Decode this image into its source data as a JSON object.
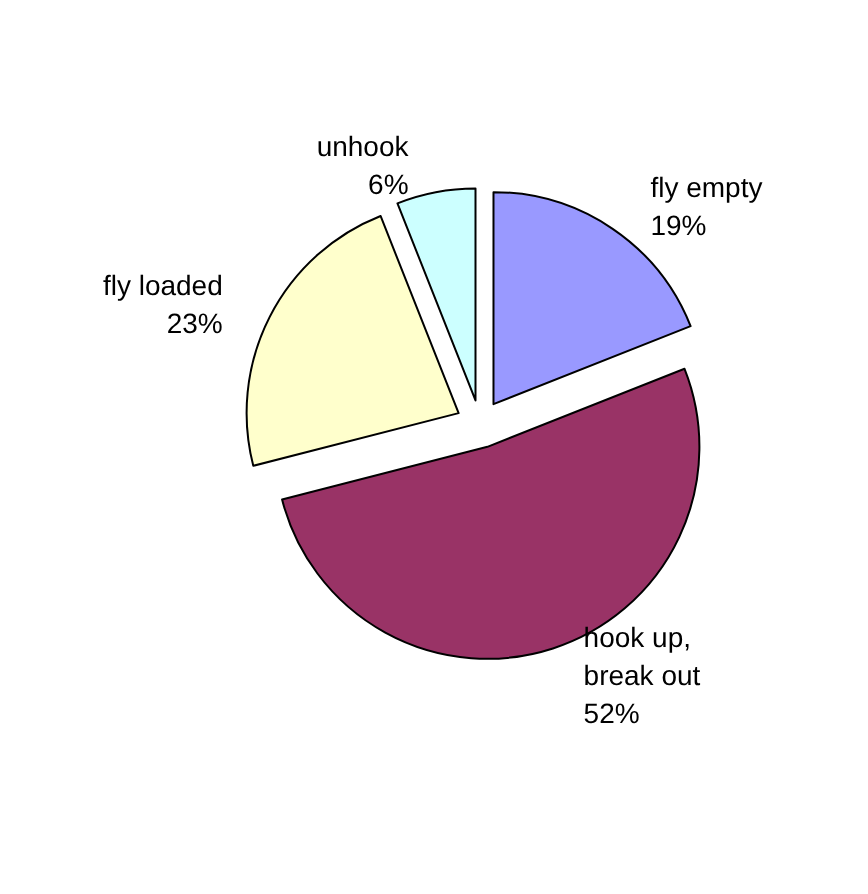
{
  "chart_data": {
    "type": "pie",
    "categories": [
      "fly empty",
      "hook up, break out",
      "fly loaded",
      "unhook"
    ],
    "values": [
      19,
      52,
      23,
      6
    ],
    "colors": [
      "#9999ff",
      "#993366",
      "#ffffcc",
      "#ccffff"
    ],
    "value_labels": [
      "19%",
      "52%",
      "23%",
      "6%"
    ],
    "legend": false
  }
}
